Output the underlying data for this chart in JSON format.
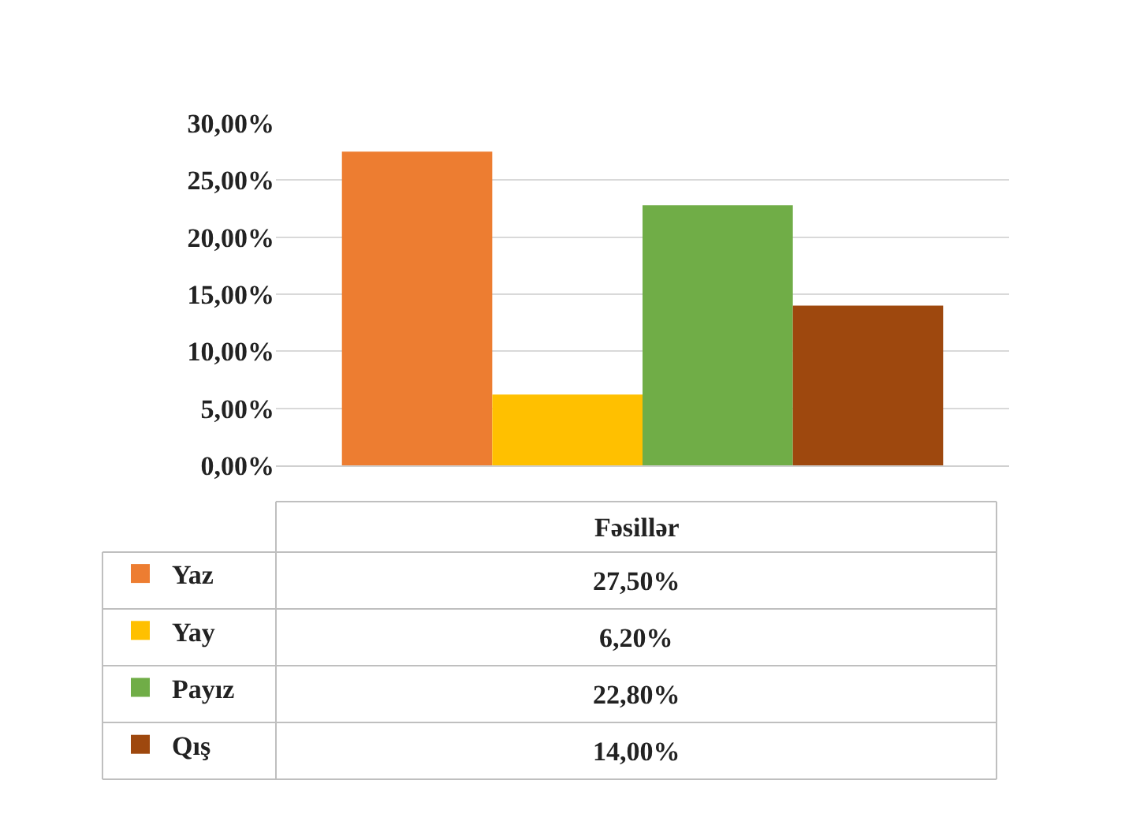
{
  "chart_data": {
    "type": "bar",
    "categories": [
      "Fəsillər"
    ],
    "series": [
      {
        "name": "Yaz",
        "color": "#ed7d31",
        "values": [
          27.5
        ]
      },
      {
        "name": "Yay",
        "color": "#ffc000",
        "values": [
          6.2
        ]
      },
      {
        "name": "Payız",
        "color": "#70ad47",
        "values": [
          22.8
        ]
      },
      {
        "name": "Qış",
        "color": "#9e480e",
        "values": [
          14.0
        ]
      }
    ],
    "value_labels": [
      "27,50%",
      "6,20%",
      "22,80%",
      "14,00%"
    ],
    "ylim": [
      0,
      30
    ],
    "yticks": [
      {
        "value": 0,
        "label": "0,00%"
      },
      {
        "value": 5,
        "label": "5,00%"
      },
      {
        "value": 10,
        "label": "10,00%"
      },
      {
        "value": 15,
        "label": "15,00%"
      },
      {
        "value": 20,
        "label": "20,00%"
      },
      {
        "value": 25,
        "label": "25,00%"
      },
      {
        "value": 30,
        "label": "30,00%"
      }
    ],
    "grid": "y",
    "legend": "bottom left"
  }
}
